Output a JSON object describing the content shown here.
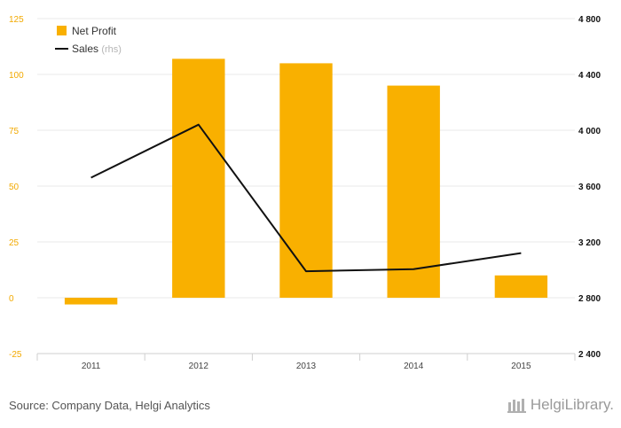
{
  "chart_data": {
    "type": "bar",
    "categories": [
      "2011",
      "2012",
      "2013",
      "2014",
      "2015"
    ],
    "series": [
      {
        "name": "Net Profit",
        "type": "bar",
        "axis": "left",
        "color": "#F9B000",
        "values": [
          -3,
          107,
          105,
          95,
          10
        ]
      },
      {
        "name": "Sales",
        "legend_suffix": "(rhs)",
        "type": "line",
        "axis": "right",
        "color": "#111111",
        "values": [
          3660,
          4040,
          2990,
          3005,
          3120
        ]
      }
    ],
    "y_left": {
      "min": -25,
      "max": 125,
      "ticks": [
        "-25",
        "0",
        "25",
        "50",
        "75",
        "100",
        "125"
      ],
      "tick_values": [
        -25,
        0,
        25,
        50,
        75,
        100,
        125
      ],
      "color": "#F2A900"
    },
    "y_right": {
      "min": 2400,
      "max": 4800,
      "ticks": [
        "2 400",
        "2 800",
        "3 200",
        "3 600",
        "4 000",
        "4 400",
        "4 800"
      ],
      "tick_values": [
        2400,
        2800,
        3200,
        3600,
        4000,
        4400,
        4800
      ],
      "color": "#111111"
    },
    "grid": true,
    "legend_position": "top-left"
  },
  "footer": {
    "source": "Source: Company Data, Helgi Analytics",
    "brand": "HelgiLibrary."
  }
}
